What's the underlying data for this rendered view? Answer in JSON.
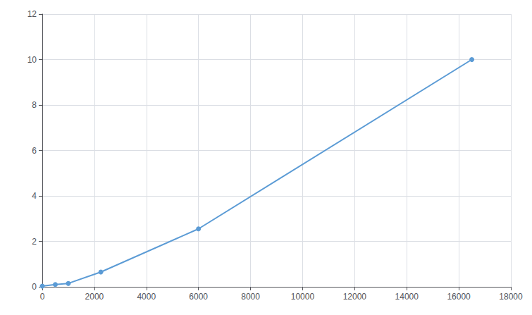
{
  "chart_data": {
    "type": "line",
    "x": [
      0,
      500,
      1000,
      2250,
      6000,
      16500
    ],
    "values": [
      0.03,
      0.1,
      0.15,
      0.65,
      2.55,
      10.0
    ],
    "color": "#5B9BD5",
    "marker": "circle",
    "xlim": [
      0,
      18000
    ],
    "ylim": [
      0,
      12
    ],
    "xticks": [
      0,
      2000,
      4000,
      6000,
      8000,
      10000,
      12000,
      14000,
      16000,
      18000
    ],
    "yticks": [
      0,
      2,
      4,
      6,
      8,
      10,
      12
    ],
    "grid": true
  }
}
